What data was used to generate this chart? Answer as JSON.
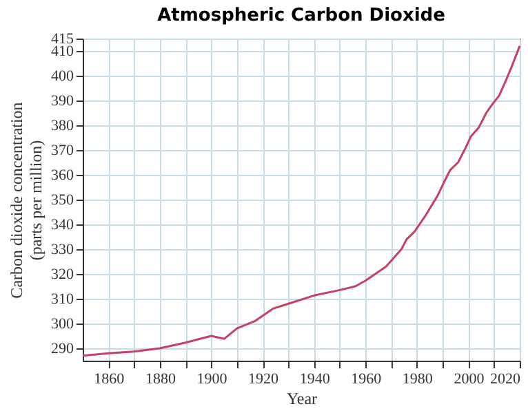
{
  "chart_data": {
    "type": "line",
    "title": "Atmospheric Carbon Dioxide",
    "xlabel": "Year",
    "ylabel": "Carbon dioxide concentration\n(parts per million)",
    "x": [
      1850,
      1860,
      1870,
      1880,
      1890,
      1900,
      1905,
      1910,
      1917,
      1924,
      1930,
      1940,
      1950,
      1956,
      1960,
      1968,
      1974,
      1976,
      1979,
      1983,
      1988,
      1991,
      1993,
      1996,
      1999,
      2001,
      2004,
      2007,
      2009,
      2012,
      2015,
      2017,
      2020
    ],
    "series": [
      {
        "color": "#c2406a",
        "values": [
          287,
          288,
          288.7,
          290,
          292.3,
          295,
          293.8,
          298,
          301,
          306,
          308,
          311.3,
          313.5,
          315,
          317.3,
          323,
          330,
          334,
          337,
          343,
          351.5,
          358,
          362,
          365,
          371,
          375.5,
          379,
          385,
          388,
          392,
          399,
          404,
          412
        ]
      }
    ],
    "xlim": [
      1850,
      2020
    ],
    "xticks": [
      1860,
      {
        "value": 1870,
        "label": null
      },
      1880,
      {
        "value": 1890,
        "label": null
      },
      1900,
      {
        "value": 1910,
        "label": null
      },
      1920,
      {
        "value": 1930,
        "label": null
      },
      1940,
      {
        "value": 1950,
        "label": null
      },
      1960,
      {
        "value": 1970,
        "label": null
      },
      1980,
      {
        "value": 1990,
        "label": null
      },
      2000,
      {
        "value": 2010,
        "label": null
      },
      2020
    ],
    "ylim": [
      285,
      415
    ],
    "yticks": [
      290,
      300,
      310,
      320,
      330,
      340,
      350,
      360,
      370,
      380,
      390,
      400,
      410,
      415
    ],
    "grid": true,
    "marker": "none",
    "line_style": "solid"
  }
}
